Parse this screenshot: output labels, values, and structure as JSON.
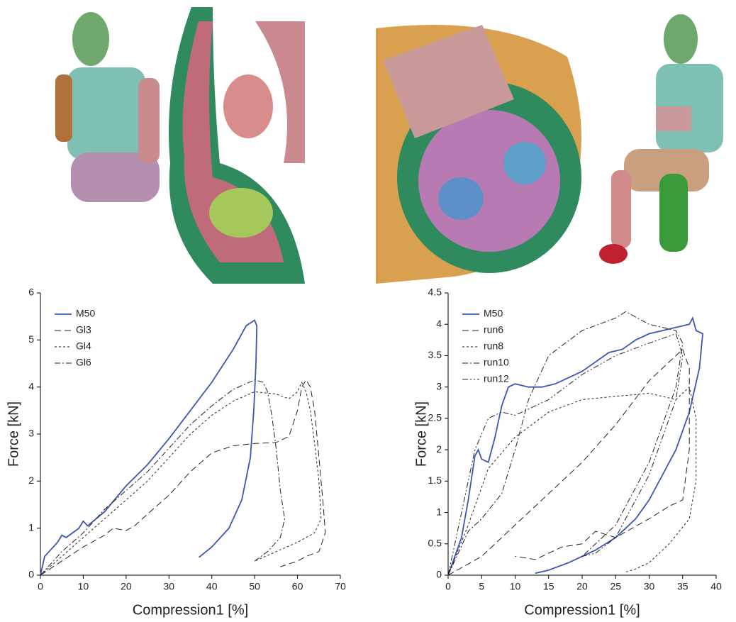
{
  "chart_data": [
    {
      "type": "line",
      "xlabel": "Compression1 [%]",
      "ylabel": "Force [kN]",
      "xlim": [
        0,
        70
      ],
      "xticks": [
        0,
        10,
        20,
        30,
        40,
        50,
        60,
        70
      ],
      "ylim": [
        0,
        6
      ],
      "yticks": [
        0,
        1,
        2,
        3,
        4,
        5,
        6
      ],
      "legend": "upper left",
      "series": [
        {
          "name": "M50",
          "color": "#3a57b5",
          "style": "solid",
          "x": [
            0,
            1,
            4,
            5,
            6,
            9,
            10,
            11,
            15,
            20,
            25,
            30,
            35,
            40,
            45,
            48,
            50,
            50.5,
            50.3,
            49.8,
            49,
            47,
            44,
            40,
            37
          ],
          "values": [
            0,
            0.4,
            0.7,
            0.85,
            0.8,
            1.0,
            1.15,
            1.05,
            1.35,
            1.9,
            2.35,
            2.9,
            3.5,
            4.1,
            4.8,
            5.3,
            5.42,
            5.3,
            4.5,
            3.5,
            2.5,
            1.6,
            1.0,
            0.6,
            0.38
          ]
        },
        {
          "name": "Gl3",
          "color": "#222222",
          "style": "dashed",
          "x": [
            0,
            5,
            10,
            15,
            17,
            20,
            22,
            25,
            30,
            35,
            40,
            45,
            50,
            55,
            58,
            60,
            61,
            62,
            63,
            64,
            65,
            66,
            66.5,
            65,
            62,
            60,
            56
          ],
          "values": [
            0,
            0.3,
            0.6,
            0.85,
            1.0,
            0.95,
            1.05,
            1.3,
            1.7,
            2.2,
            2.6,
            2.75,
            2.8,
            2.82,
            2.95,
            3.5,
            4.0,
            4.15,
            4.0,
            3.5,
            2.5,
            1.5,
            0.9,
            0.5,
            0.4,
            0.3,
            0.18
          ]
        },
        {
          "name": "Gl4",
          "color": "#222222",
          "style": "dotted",
          "x": [
            0,
            5,
            10,
            15,
            20,
            25,
            30,
            35,
            40,
            45,
            50,
            55,
            58,
            60,
            61,
            62,
            63,
            64,
            65,
            65.5,
            64,
            60,
            55,
            50
          ],
          "values": [
            0,
            0.4,
            0.8,
            1.2,
            1.6,
            2.0,
            2.5,
            3.0,
            3.4,
            3.7,
            3.9,
            3.85,
            3.75,
            3.9,
            4.1,
            3.9,
            3.5,
            2.8,
            2.0,
            1.2,
            0.9,
            0.7,
            0.5,
            0.3
          ]
        },
        {
          "name": "Gl6",
          "color": "#222222",
          "style": "dashdot",
          "x": [
            0,
            5,
            10,
            15,
            20,
            25,
            30,
            35,
            40,
            45,
            50,
            52,
            53,
            54,
            55,
            56,
            57,
            56,
            53,
            50
          ],
          "values": [
            0,
            0.5,
            0.9,
            1.4,
            1.8,
            2.2,
            2.7,
            3.2,
            3.6,
            3.95,
            4.15,
            4.1,
            3.9,
            3.4,
            2.7,
            1.8,
            1.2,
            0.8,
            0.5,
            0.3
          ]
        }
      ]
    },
    {
      "type": "line",
      "xlabel": "Compression1 [%]",
      "ylabel": "Force [kN]",
      "xlim": [
        0,
        40
      ],
      "xticks": [
        0,
        5,
        10,
        15,
        20,
        25,
        30,
        35,
        40
      ],
      "ylim": [
        0,
        4.5
      ],
      "yticks": [
        0,
        0.5,
        1,
        1.5,
        2,
        2.5,
        3,
        3.5,
        4,
        4.5
      ],
      "legend": "upper left",
      "series": [
        {
          "name": "M50",
          "color": "#3a57b5",
          "style": "solid",
          "x": [
            0,
            1,
            2,
            3,
            4,
            4.5,
            5,
            6,
            7,
            8,
            9,
            10,
            12,
            14,
            16,
            18,
            20,
            22,
            24,
            26,
            28,
            30,
            32,
            34,
            36,
            36.5,
            37,
            38,
            37.5,
            36,
            34,
            32,
            30,
            28,
            25,
            22,
            18,
            15,
            13
          ],
          "values": [
            0,
            0.3,
            0.6,
            1.2,
            1.9,
            2.0,
            1.85,
            1.8,
            2.2,
            2.7,
            3.0,
            3.05,
            3.0,
            3.0,
            3.05,
            3.15,
            3.25,
            3.4,
            3.55,
            3.6,
            3.75,
            3.85,
            3.9,
            3.95,
            4.0,
            4.1,
            3.9,
            3.85,
            3.3,
            2.6,
            2.0,
            1.6,
            1.2,
            0.9,
            0.6,
            0.4,
            0.2,
            0.08,
            0.03
          ]
        },
        {
          "name": "run6",
          "color": "#222222",
          "style": "dashed",
          "x": [
            0,
            5,
            10,
            15,
            20,
            25,
            30,
            33,
            35,
            36,
            36,
            35,
            33,
            30,
            25,
            22,
            20,
            17,
            15,
            13,
            10
          ],
          "values": [
            0,
            0.3,
            0.8,
            1.3,
            1.8,
            2.4,
            3.1,
            3.4,
            3.6,
            3.3,
            2.0,
            1.2,
            1.1,
            0.9,
            0.6,
            0.7,
            0.5,
            0.45,
            0.35,
            0.25,
            0.3
          ]
        },
        {
          "name": "run8",
          "color": "#222222",
          "style": "dotted",
          "x": [
            0,
            3,
            6,
            10,
            15,
            20,
            25,
            30,
            34,
            36,
            37,
            37,
            36,
            33,
            30,
            28,
            26.5
          ],
          "values": [
            0,
            0.8,
            1.7,
            2.2,
            2.6,
            2.8,
            2.85,
            2.9,
            2.8,
            3.0,
            2.5,
            1.5,
            0.9,
            0.5,
            0.2,
            0.1,
            0.05
          ]
        },
        {
          "name": "run10",
          "color": "#222222",
          "style": "dashdot",
          "x": [
            0,
            3,
            5,
            8,
            10,
            12,
            15,
            20,
            25,
            26.5,
            30,
            34,
            35,
            34,
            32,
            30,
            27,
            25,
            22,
            20
          ],
          "values": [
            0,
            0.7,
            0.9,
            1.3,
            2.0,
            2.8,
            3.5,
            3.9,
            4.1,
            4.2,
            4.0,
            3.9,
            3.7,
            3.0,
            2.4,
            1.8,
            1.2,
            0.8,
            0.5,
            0.3
          ]
        },
        {
          "name": "run12",
          "color": "#222222",
          "style": "dashdotdot",
          "x": [
            0,
            2,
            4,
            6,
            8,
            10,
            15,
            20,
            25,
            30,
            34,
            35,
            34,
            32,
            30,
            27,
            25,
            22,
            20
          ],
          "values": [
            0,
            1.0,
            2.0,
            2.5,
            2.6,
            2.55,
            2.8,
            3.2,
            3.5,
            3.7,
            3.85,
            3.5,
            2.8,
            2.2,
            1.6,
            1.0,
            0.6,
            0.35,
            0.3
          ]
        }
      ]
    }
  ]
}
